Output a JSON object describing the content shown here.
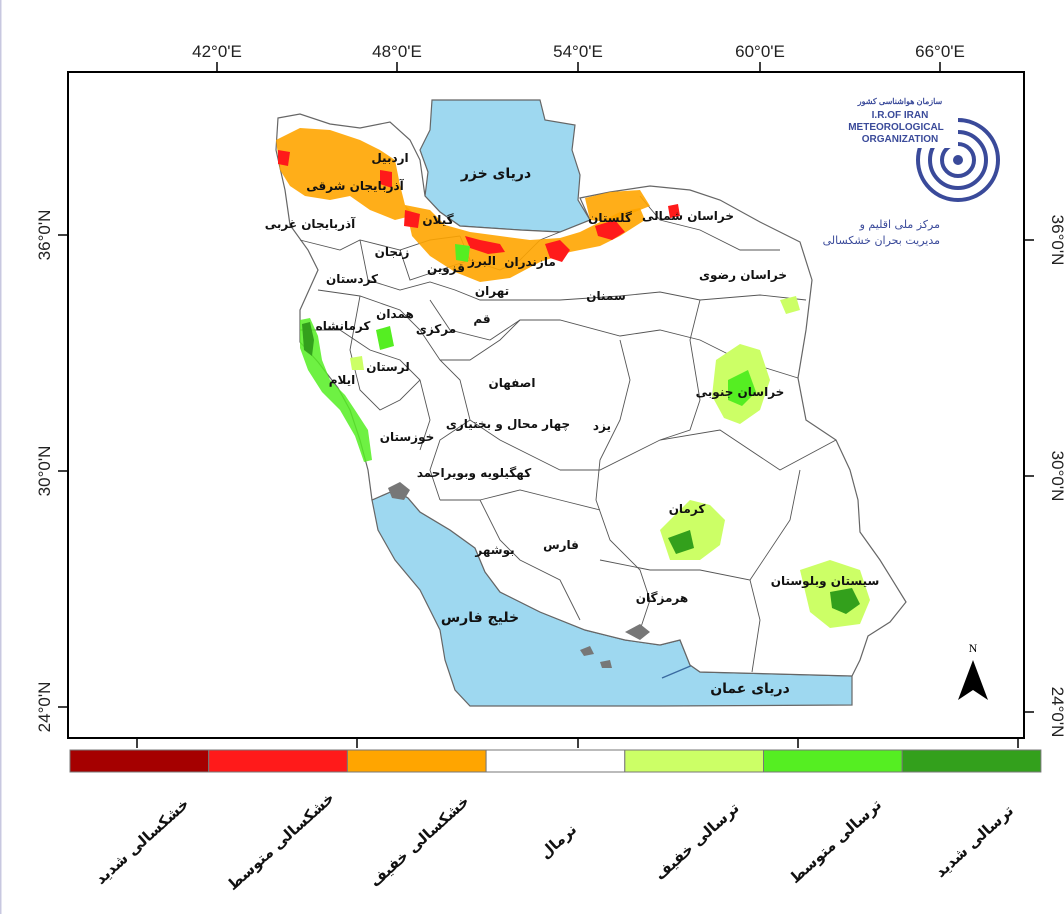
{
  "map": {
    "top_longitudes": [
      "42°0'E",
      "48°0'E",
      "54°0'E",
      "60°0'E",
      "66°0'E"
    ],
    "left_latitudes": [
      "36°0'N",
      "30°0'N",
      "24°0'N"
    ],
    "right_latitudes": [
      "36°0'N",
      "30°0'N",
      "24°0'N"
    ],
    "seas": {
      "caspian": "دریای خزر",
      "persian_gulf": "خلیج فارس",
      "oman_sea": "دریای عمان"
    },
    "provinces": [
      "اردبیل",
      "آذربایجان شرقی",
      "آذربایجان غربی",
      "زنجان",
      "گیلان",
      "کردستان",
      "قزوین",
      "مازندران",
      "البرز",
      "تهران",
      "گلستان",
      "خراسان شمالی",
      "خراسان رضوی",
      "سمنان",
      "همدان",
      "کرمانشاه",
      "مرکزی",
      "قم",
      "لرستان",
      "ایلام",
      "اصفهان",
      "خراسان جنوبی",
      "خوزستان",
      "چهار محال و بختیاری",
      "یزد",
      "کهگیلویه وبویراحمد",
      "کرمان",
      "بوشهر",
      "فارس",
      "سیستان وبلوستان",
      "هرمزگان"
    ],
    "north_arrow": "N"
  },
  "logo": {
    "org_fa": "سازمان هواشناسی کشور",
    "line1": "I.R.OF IRAN",
    "line2": "METEOROLOGICAL",
    "line3": "ORGANIZATION",
    "center_line1": "مرکز ملی اقلیم و",
    "center_line2": "مدیریت بحران خشکسالی"
  },
  "legend": {
    "classes": [
      {
        "label": "خشکسالی شدید",
        "color": "#a50000"
      },
      {
        "label": "خشکسالی متوسط",
        "color": "#ff1a1a"
      },
      {
        "label": "خشکسالی خفیف",
        "color": "#ffa500"
      },
      {
        "label": "نرمال",
        "color": "#ffffff"
      },
      {
        "label": "ترسالی خفیف",
        "color": "#ccff66"
      },
      {
        "label": "ترسالی متوسط",
        "color": "#55ee22"
      },
      {
        "label": "ترسالی شدید",
        "color": "#33a01c"
      }
    ]
  },
  "colors": {
    "sea": "#9ed8f0",
    "border": "#666666",
    "logo": "#3a4a9a"
  }
}
